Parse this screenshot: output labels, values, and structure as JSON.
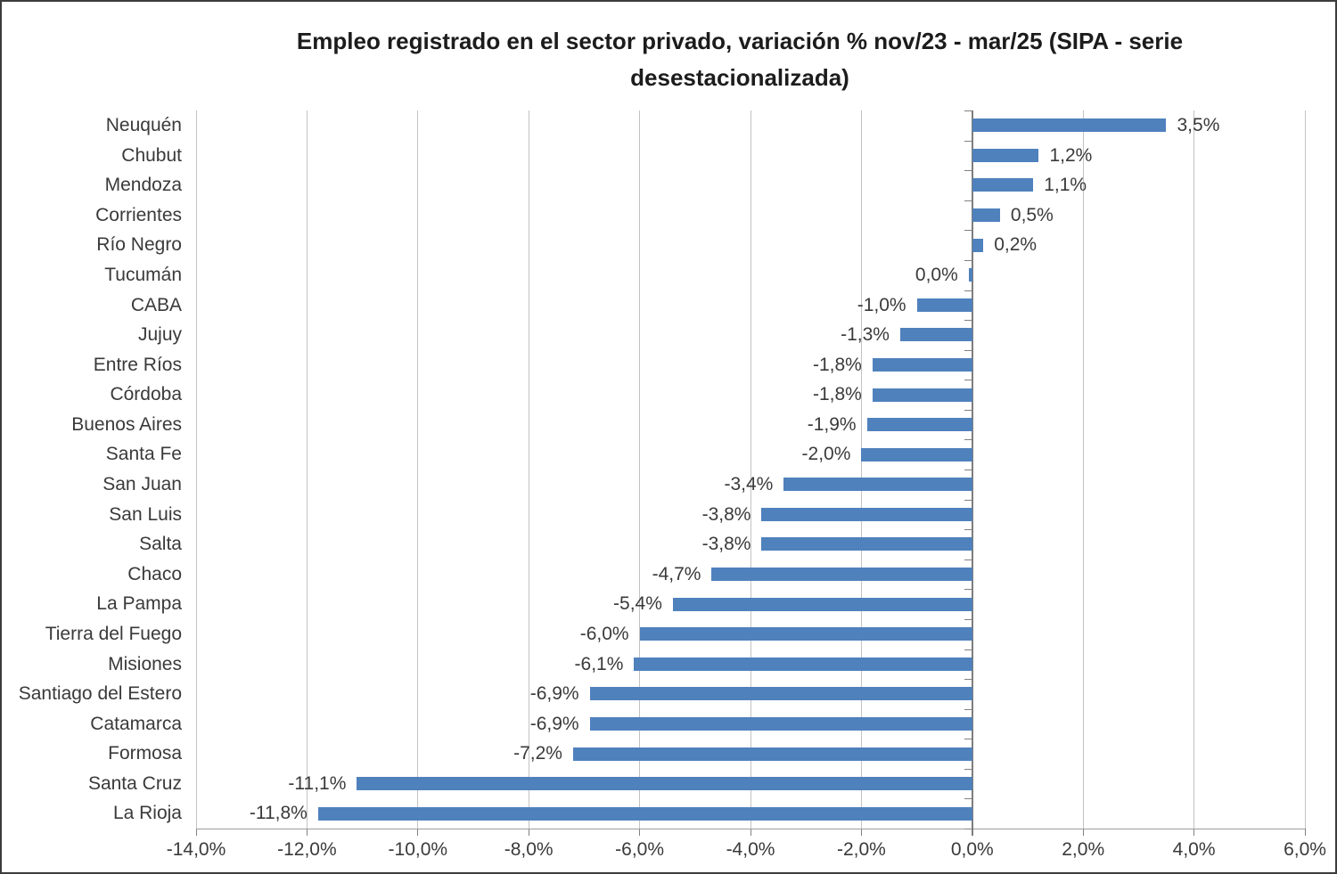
{
  "title_line1": "Empleo registrado en el sector privado, variación % nov/23 - mar/25 (SIPA - serie",
  "title_line2": "desestacionalizada)",
  "chart_data": {
    "type": "bar",
    "orientation": "horizontal",
    "title": "Empleo registrado en el sector privado, variación % nov/23 - mar/25 (SIPA - serie desestacionalizada)",
    "xlabel": "",
    "ylabel": "",
    "xlim": [
      -14,
      6
    ],
    "grid": true,
    "legend": false,
    "categories": [
      "Neuquén",
      "Chubut",
      "Mendoza",
      "Corrientes",
      "Río Negro",
      "Tucumán",
      "CABA",
      "Jujuy",
      "Entre Ríos",
      "Córdoba",
      "Buenos Aires",
      "Santa Fe",
      "San Juan",
      "San Luis",
      "Salta",
      "Chaco",
      "La Pampa",
      "Tierra del Fuego",
      "Misiones",
      "Santiago del Estero",
      "Catamarca",
      "Formosa",
      "Santa Cruz",
      "La Rioja"
    ],
    "values": [
      3.5,
      1.2,
      1.1,
      0.5,
      0.2,
      0.0,
      -1.0,
      -1.3,
      -1.8,
      -1.8,
      -1.9,
      -2.0,
      -3.4,
      -3.8,
      -3.8,
      -4.7,
      -5.4,
      -6.0,
      -6.1,
      -6.9,
      -6.9,
      -7.2,
      -11.1,
      -11.8
    ],
    "value_labels": [
      "3,5%",
      "1,2%",
      "1,1%",
      "0,5%",
      "0,2%",
      "0,0%",
      "-1,0%",
      "-1,3%",
      "-1,8%",
      "-1,8%",
      "-1,9%",
      "-2,0%",
      "-3,4%",
      "-3,8%",
      "-3,8%",
      "-4,7%",
      "-5,4%",
      "-6,0%",
      "-6,1%",
      "-6,9%",
      "-6,9%",
      "-7,2%",
      "-11,1%",
      "-11,8%"
    ],
    "x_tick_values": [
      -14,
      -12,
      -10,
      -8,
      -6,
      -4,
      -2,
      0,
      2,
      4,
      6
    ],
    "x_tick_labels": [
      "-14,0%",
      "-12,0%",
      "-10,0%",
      "-8,0%",
      "-6,0%",
      "-4,0%",
      "-2,0%",
      "0,0%",
      "2,0%",
      "4,0%",
      "6,0%"
    ],
    "bar_color": "#4f81bd",
    "gridline_color": "#c3c3c3",
    "axis_color": "#7d7d7d",
    "text_color": "#3a3a3a"
  }
}
